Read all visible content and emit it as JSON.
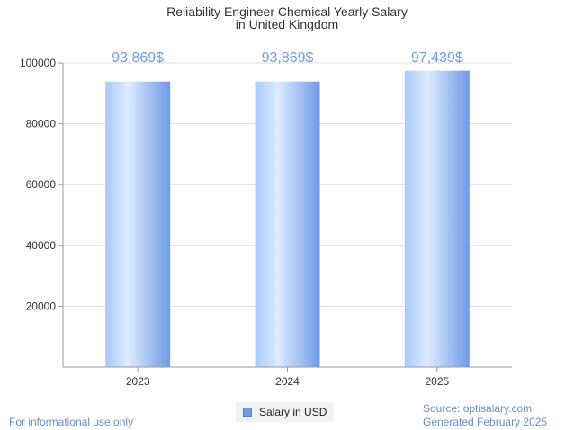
{
  "chart_data": {
    "type": "bar",
    "title": "Reliability Engineer Chemical Yearly Salary",
    "subtitle": "in United Kingdom",
    "categories": [
      "2023",
      "2024",
      "2025"
    ],
    "series": [
      {
        "name": "Salary in USD",
        "values": [
          93869,
          93869,
          97439
        ],
        "data_labels": [
          "93,869$",
          "93,869$",
          "97,439$"
        ]
      }
    ],
    "yticks": [
      20000,
      40000,
      60000,
      80000,
      100000
    ],
    "ylim": [
      0,
      100000
    ],
    "grid": true,
    "legend_position": "bottom-center",
    "colors": {
      "bar_light": "#dcebff",
      "bar_mid": "#a8cbfb",
      "bar_dark": "#6f9ae6",
      "data_label": "#6f9ae6",
      "grid": "#dddddd",
      "axis": "#999999"
    }
  },
  "footer": {
    "disclaimer": "For informational use only",
    "source": "Source: optisalary.com",
    "generated": "Generated February 2025"
  }
}
